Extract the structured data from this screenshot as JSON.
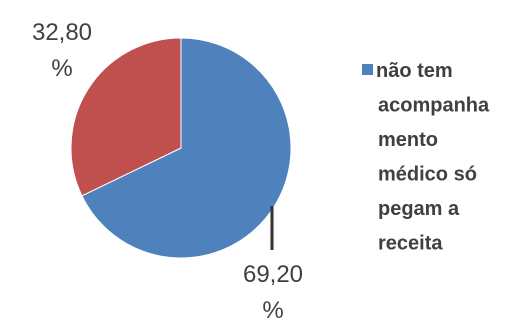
{
  "chart_data": {
    "type": "pie",
    "title": "",
    "slices": [
      {
        "label": "não tem acompanhamento médico só pegam a receita",
        "value": 69.2,
        "data_label_lines": [
          "69,20",
          "%"
        ],
        "color": "#4F81BD"
      },
      {
        "label": "",
        "value": 32.8,
        "data_label_lines": [
          "32,80",
          "%"
        ],
        "color": "#C0504D"
      }
    ],
    "legend": {
      "placement": "right",
      "entries": [
        {
          "lines": [
            "não tem",
            "acompanha",
            "mento",
            "médico só",
            "pegam a",
            "receita"
          ],
          "color": "#4F81BD"
        }
      ]
    }
  }
}
